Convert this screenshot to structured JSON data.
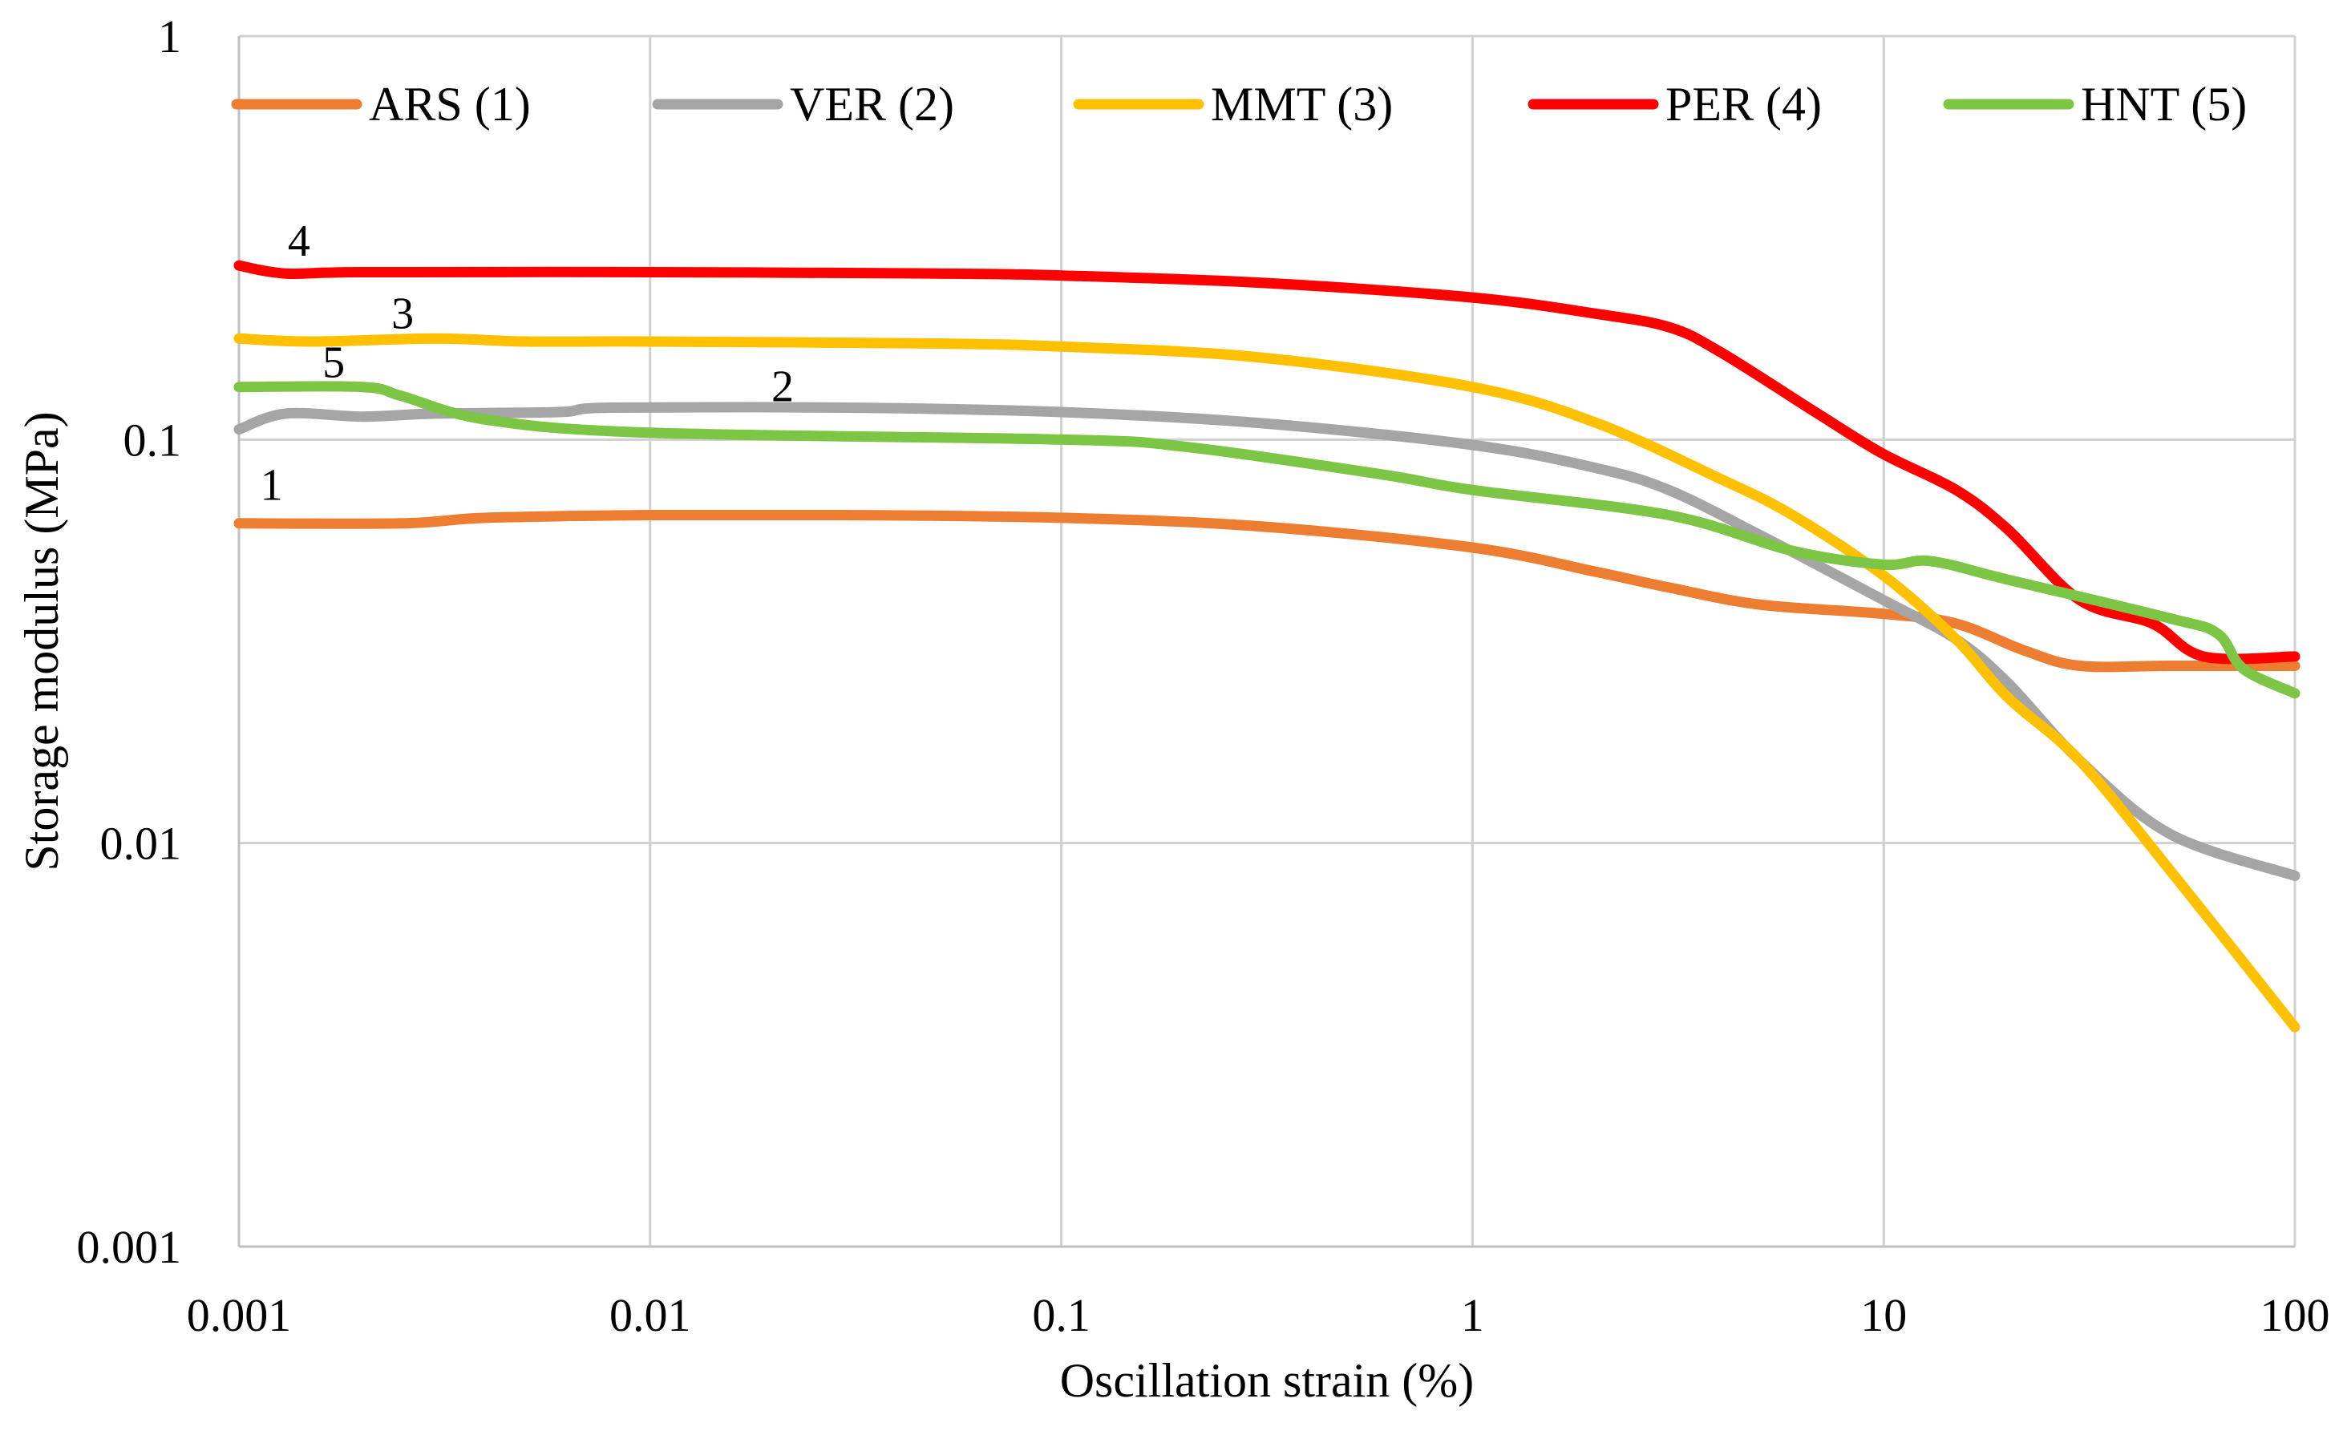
{
  "chart_data": {
    "type": "line",
    "x_scale": "log",
    "y_scale": "log",
    "xlabel": "Oscillation strain (%)",
    "ylabel": "Storage modulus (MPa)",
    "xlim": [
      0.001,
      100
    ],
    "ylim": [
      0.001,
      1
    ],
    "x_ticks": [
      "0.001",
      "0.01",
      "0.1",
      "1",
      "10",
      "100"
    ],
    "x_tick_values": [
      0.001,
      0.01,
      0.1,
      1,
      10,
      100
    ],
    "y_ticks": [
      "0.001",
      "0.01",
      "0.1",
      "1"
    ],
    "y_tick_values": [
      0.001,
      0.01,
      0.1,
      1
    ],
    "grid": true,
    "legend_position": "top",
    "series": [
      {
        "name": "ARS (1)",
        "label": "1",
        "color": "#ED7D31",
        "points": [
          [
            0.001,
            0.062
          ],
          [
            0.0025,
            0.062
          ],
          [
            0.004,
            0.064
          ],
          [
            0.01,
            0.065
          ],
          [
            0.03,
            0.065
          ],
          [
            0.1,
            0.064
          ],
          [
            0.3,
            0.061
          ],
          [
            1,
            0.054
          ],
          [
            2,
            0.047
          ],
          [
            3,
            0.043
          ],
          [
            5,
            0.039
          ],
          [
            10,
            0.037
          ],
          [
            15,
            0.035
          ],
          [
            22,
            0.03
          ],
          [
            30,
            0.0275
          ],
          [
            50,
            0.0275
          ],
          [
            100,
            0.0275
          ]
        ]
      },
      {
        "name": "VER (2)",
        "label": "2",
        "color": "#A5A5A5",
        "points": [
          [
            0.001,
            0.106
          ],
          [
            0.0013,
            0.116
          ],
          [
            0.002,
            0.114
          ],
          [
            0.003,
            0.116
          ],
          [
            0.006,
            0.117
          ],
          [
            0.008,
            0.12
          ],
          [
            0.03,
            0.12
          ],
          [
            0.1,
            0.117
          ],
          [
            0.3,
            0.11
          ],
          [
            1,
            0.097
          ],
          [
            2,
            0.085
          ],
          [
            3,
            0.075
          ],
          [
            5,
            0.058
          ],
          [
            10,
            0.04
          ],
          [
            15,
            0.032
          ],
          [
            20,
            0.025
          ],
          [
            30,
            0.016
          ],
          [
            50,
            0.0105
          ],
          [
            100,
            0.0083
          ]
        ]
      },
      {
        "name": "MMT (3)",
        "label": "3",
        "color": "#FFC000",
        "points": [
          [
            0.001,
            0.178
          ],
          [
            0.0015,
            0.175
          ],
          [
            0.003,
            0.178
          ],
          [
            0.005,
            0.175
          ],
          [
            0.01,
            0.175
          ],
          [
            0.05,
            0.173
          ],
          [
            0.1,
            0.17
          ],
          [
            0.3,
            0.16
          ],
          [
            1,
            0.135
          ],
          [
            2,
            0.11
          ],
          [
            4,
            0.08
          ],
          [
            6,
            0.065
          ],
          [
            10,
            0.046
          ],
          [
            15,
            0.032
          ],
          [
            20,
            0.023
          ],
          [
            30,
            0.016
          ],
          [
            50,
            0.0085
          ],
          [
            100,
            0.0035
          ]
        ]
      },
      {
        "name": "PER (4)",
        "label": "4",
        "color": "#FF0000",
        "points": [
          [
            0.001,
            0.27
          ],
          [
            0.0013,
            0.258
          ],
          [
            0.002,
            0.26
          ],
          [
            0.01,
            0.26
          ],
          [
            0.05,
            0.258
          ],
          [
            0.1,
            0.255
          ],
          [
            0.3,
            0.245
          ],
          [
            1,
            0.225
          ],
          [
            2,
            0.205
          ],
          [
            3,
            0.19
          ],
          [
            4,
            0.165
          ],
          [
            7,
            0.115
          ],
          [
            10,
            0.092
          ],
          [
            15,
            0.075
          ],
          [
            20,
            0.06
          ],
          [
            30,
            0.04
          ],
          [
            45,
            0.035
          ],
          [
            60,
            0.029
          ],
          [
            100,
            0.029
          ]
        ]
      },
      {
        "name": "HNT (5)",
        "label": "5",
        "color": "#7CC545",
        "points": [
          [
            0.001,
            0.135
          ],
          [
            0.002,
            0.135
          ],
          [
            0.0025,
            0.128
          ],
          [
            0.004,
            0.112
          ],
          [
            0.01,
            0.104
          ],
          [
            0.1,
            0.1
          ],
          [
            0.2,
            0.096
          ],
          [
            0.6,
            0.082
          ],
          [
            1,
            0.075
          ],
          [
            3,
            0.065
          ],
          [
            6,
            0.053
          ],
          [
            10,
            0.049
          ],
          [
            13,
            0.05
          ],
          [
            20,
            0.045
          ],
          [
            50,
            0.036
          ],
          [
            65,
            0.033
          ],
          [
            75,
            0.027
          ],
          [
            100,
            0.0235
          ]
        ]
      }
    ],
    "series_labels_anchor": [
      {
        "text": "4",
        "x": 0.0014,
        "y": 0.31
      },
      {
        "text": "3",
        "x": 0.0025,
        "y": 0.205
      },
      {
        "text": "5",
        "x": 0.0017,
        "y": 0.155
      },
      {
        "text": "2",
        "x": 0.021,
        "y": 0.135
      },
      {
        "text": "1",
        "x": 0.0012,
        "y": 0.077
      }
    ]
  }
}
